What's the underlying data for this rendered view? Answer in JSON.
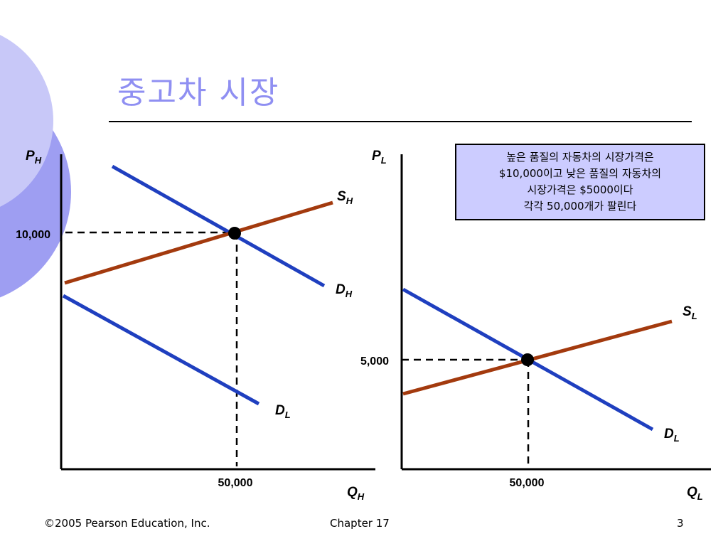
{
  "slide": {
    "title": "중고차 시장",
    "callout_lines": [
      "높은 품질의 자동차의 시장가격은",
      "$10,000이고 낮은 품질의 자동차의",
      "시장가격은 $5000이다",
      "각각 50,000개가 팔린다"
    ],
    "footer": {
      "copyright": "©2005 Pearson Education, Inc.",
      "chapter": "Chapter 17",
      "page": "3"
    }
  },
  "colors": {
    "demand": "#1f3fbf",
    "supply": "#a33a0e",
    "axis": "#000000",
    "title": "#8f8ff2",
    "callout_bg": "#ccccff",
    "deco_light": "#c8c8f8",
    "deco_mid": "#9e9ef2"
  },
  "chart_data": [
    {
      "type": "line",
      "panel": "high-quality",
      "ylabel": "P",
      "ylabel_sub": "H",
      "xlabel": "Q",
      "xlabel_sub": "H",
      "y_tick_label": "10,000",
      "x_tick_label": "50,000",
      "equilibrium": {
        "x": 50000,
        "y": 10000
      },
      "series": [
        {
          "name": "S",
          "sub": "H",
          "kind": "supply",
          "label_pos": "end"
        },
        {
          "name": "D",
          "sub": "H",
          "kind": "demand",
          "label_pos": "end"
        },
        {
          "name": "D",
          "sub": "L",
          "kind": "demand",
          "label_pos": "end"
        }
      ]
    },
    {
      "type": "line",
      "panel": "low-quality",
      "ylabel": "P",
      "ylabel_sub": "L",
      "xlabel": "Q",
      "xlabel_sub": "L",
      "y_tick_label": "5,000",
      "x_tick_label": "50,000",
      "equilibrium": {
        "x": 50000,
        "y": 5000
      },
      "series": [
        {
          "name": "S",
          "sub": "L",
          "kind": "supply",
          "label_pos": "end"
        },
        {
          "name": "D",
          "sub": "L",
          "kind": "demand",
          "label_pos": "end"
        }
      ]
    }
  ]
}
